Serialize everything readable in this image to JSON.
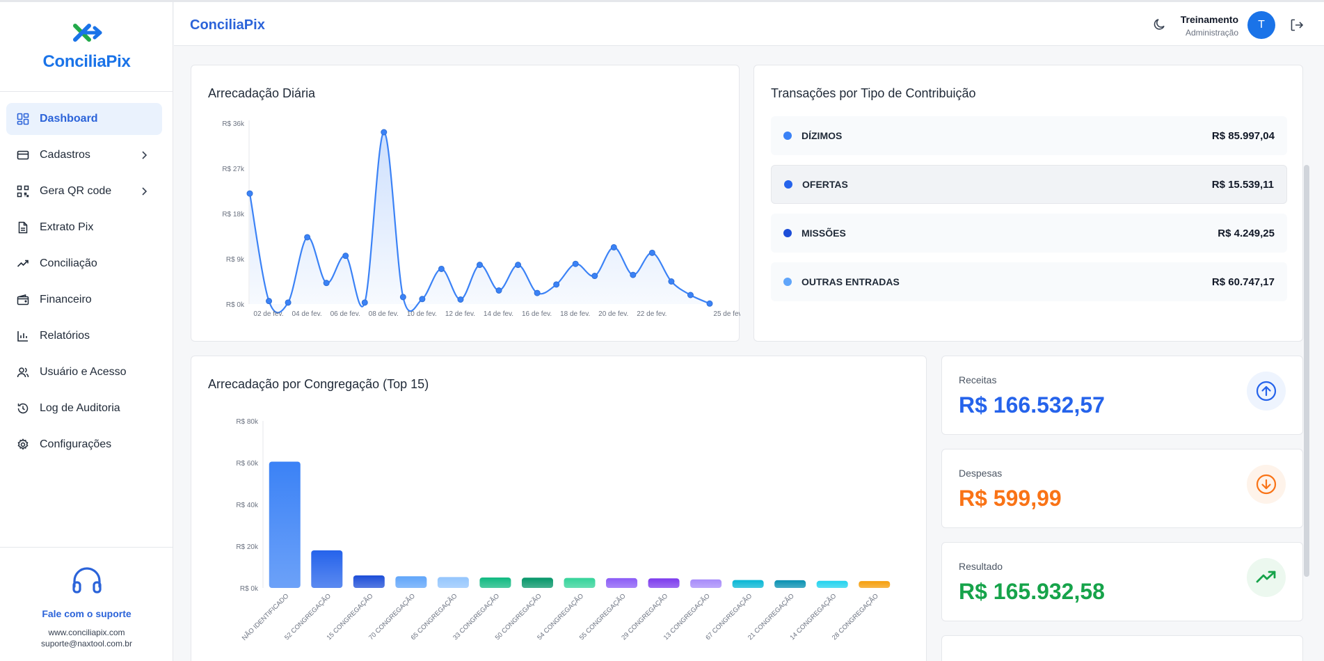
{
  "app": {
    "name": "ConciliaPix",
    "brand_color": "#2b63d9"
  },
  "sidebar": {
    "items": [
      {
        "label": "Dashboard",
        "icon": "dashboard-icon",
        "active": true
      },
      {
        "label": "Cadastros",
        "icon": "card-icon",
        "has_submenu": true
      },
      {
        "label": "Gera QR code",
        "icon": "qrcode-icon",
        "has_submenu": true
      },
      {
        "label": "Extrato Pix",
        "icon": "document-icon"
      },
      {
        "label": "Conciliação",
        "icon": "trend-icon"
      },
      {
        "label": "Financeiro",
        "icon": "wallet-icon"
      },
      {
        "label": "Relatórios",
        "icon": "bar-chart-icon"
      },
      {
        "label": "Usuário e Acesso",
        "icon": "users-icon"
      },
      {
        "label": "Log de Auditoria",
        "icon": "history-icon"
      },
      {
        "label": "Configurações",
        "icon": "gear-icon"
      }
    ],
    "support": {
      "title": "Fale com o suporte",
      "website": "www.conciliapix.com",
      "email": "suporte@naxtool.com.br"
    }
  },
  "header": {
    "title": "ConciliaPix",
    "user": {
      "name": "Treinamento",
      "role": "Administração",
      "initial": "T"
    }
  },
  "daily": {
    "title": "Arrecadação Diária",
    "chart_data": {
      "type": "area",
      "x_tick_labels": [
        "02 de fev.",
        "04 de fev.",
        "06 de fev.",
        "08 de fev.",
        "10 de fev.",
        "12 de fev.",
        "14 de fev.",
        "16 de fev.",
        "18 de fev.",
        "20 de fev.",
        "22 de fev.",
        "25 de fev."
      ],
      "y_tick_labels": [
        "R$ 0k",
        "R$ 9k",
        "R$ 18k",
        "R$ 27k",
        "R$ 36k"
      ],
      "ylim": [
        0,
        36000
      ],
      "values": [
        22000,
        600,
        300,
        13300,
        4200,
        9600,
        300,
        34200,
        1400,
        1000,
        7000,
        900,
        7800,
        2700,
        7800,
        2200,
        3900,
        8000,
        5600,
        11300,
        5800,
        10200,
        4500,
        1800,
        100
      ],
      "color": "#3b82f6"
    }
  },
  "transactions": {
    "title": "Transações por Tipo de Contribuição",
    "rows": [
      {
        "label": "DÍZIMOS",
        "value": "R$ 85.997,04",
        "color": "#3b82f6"
      },
      {
        "label": "OFERTAS",
        "value": "R$ 15.539,11",
        "color": "#2563eb"
      },
      {
        "label": "MISSÕES",
        "value": "R$ 4.249,25",
        "color": "#1d4ed8"
      },
      {
        "label": "OUTRAS ENTRADAS",
        "value": "R$ 60.747,17",
        "color": "#60a5fa"
      }
    ]
  },
  "congregacao": {
    "title": "Arrecadação por Congregação (Top 15)",
    "chart_data": {
      "type": "bar",
      "categories": [
        "NÃO IDENTIFICADO",
        "52 CONGREGAÇÃO",
        "15 CONGREGAÇÃO",
        "70 CONGREGAÇÃO",
        "65 CONGREGAÇÃO",
        "33 CONGREGAÇÃO",
        "50 CONGREGAÇÃO",
        "54 CONGREGAÇÃO",
        "55 CONGREGAÇÃO",
        "29 CONGREGAÇÃO",
        "13 CONGREGAÇÃO",
        "67 CONGREGAÇÃO",
        "21 CONGREGAÇÃO",
        "14 CONGREGAÇÃO",
        "28 CONGREGAÇÃO"
      ],
      "values": [
        60500,
        18000,
        6000,
        5600,
        5200,
        5000,
        4900,
        4800,
        4700,
        4600,
        4100,
        3800,
        3700,
        3400,
        3300
      ],
      "colors": [
        "#3b82f6",
        "#2563eb",
        "#1d4ed8",
        "#60a5fa",
        "#93c5fd",
        "#10b981",
        "#059669",
        "#34d399",
        "#8b5cf6",
        "#7c3aed",
        "#a78bfa",
        "#06b6d4",
        "#0891b2",
        "#22d3ee",
        "#f59e0b"
      ],
      "y_tick_labels": [
        "R$ 0k",
        "R$ 20k",
        "R$ 40k",
        "R$ 60k",
        "R$ 80k"
      ],
      "ylim": [
        0,
        80000
      ]
    }
  },
  "stats": {
    "receitas": {
      "label": "Receitas",
      "value": "R$ 166.532,57",
      "color": "#2563eb",
      "icon": "arrow-up-circle-icon"
    },
    "despesas": {
      "label": "Despesas",
      "value": "R$ 599,99",
      "color": "#f97316",
      "icon": "arrow-down-circle-icon"
    },
    "resultado": {
      "label": "Resultado",
      "value": "R$ 165.932,58",
      "color": "#16a34a",
      "icon": "trending-up-icon"
    }
  }
}
